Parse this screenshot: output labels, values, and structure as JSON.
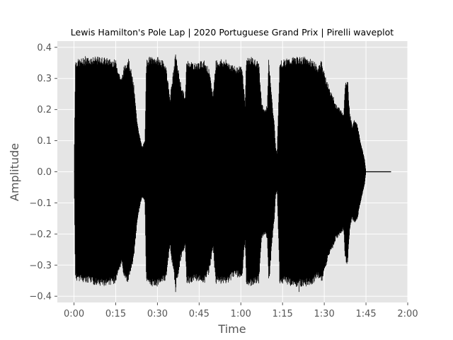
{
  "chart_data": {
    "type": "area",
    "title": "Lewis Hamilton's Pole Lap | 2020 Portuguese Grand Prix | Pirelli waveplot",
    "xlabel": "Time",
    "ylabel": "Amplitude",
    "x_unit": "seconds",
    "xlim": [
      -6,
      120
    ],
    "ylim": [
      -0.42,
      0.42
    ],
    "x_ticks": [
      {
        "value": 0,
        "label": "0:00"
      },
      {
        "value": 15,
        "label": "0:15"
      },
      {
        "value": 30,
        "label": "0:30"
      },
      {
        "value": 45,
        "label": "0:45"
      },
      {
        "value": 60,
        "label": "1:00"
      },
      {
        "value": 75,
        "label": "1:15"
      },
      {
        "value": 90,
        "label": "1:30"
      },
      {
        "value": 105,
        "label": "1:45"
      },
      {
        "value": 120,
        "label": "2:00"
      }
    ],
    "y_ticks": [
      {
        "value": 0.4,
        "label": "0.4"
      },
      {
        "value": 0.3,
        "label": "0.3"
      },
      {
        "value": 0.2,
        "label": "0.2"
      },
      {
        "value": 0.1,
        "label": "0.1"
      },
      {
        "value": 0.0,
        "label": "0.0"
      },
      {
        "value": -0.1,
        "label": "−0.1"
      },
      {
        "value": -0.2,
        "label": "−0.2"
      },
      {
        "value": -0.3,
        "label": "−0.3"
      },
      {
        "value": -0.4,
        "label": "−0.4"
      }
    ],
    "grid": true,
    "background": "#e5e5e5",
    "grid_color": "#ffffff",
    "waveform_color": "#000000",
    "envelope": {
      "x": [
        0,
        0.5,
        5,
        10,
        15,
        17,
        18,
        19.5,
        20.5,
        21.5,
        22.5,
        23.5,
        24.5,
        25.5,
        26,
        27,
        30,
        33,
        34.5,
        36.5,
        38.5,
        40,
        40.5,
        41.5,
        43.5,
        47,
        48.5,
        50,
        51,
        52.5,
        55,
        57.5,
        60.5,
        61.5,
        62,
        63.5,
        65.5,
        66.5,
        67.5,
        68.5,
        69.5,
        70,
        70.5,
        71,
        71.5,
        72,
        72.5,
        73,
        74,
        75,
        79,
        83,
        86,
        87.5,
        89,
        90,
        91.5,
        92,
        93,
        94,
        95,
        96,
        97,
        97.5,
        98,
        98.5,
        99,
        100,
        101,
        102,
        103,
        104,
        104.5,
        105,
        114
      ],
      "upper": [
        0,
        0.36,
        0.37,
        0.37,
        0.36,
        0.3,
        0.34,
        0.37,
        0.33,
        0.28,
        0.18,
        0.12,
        0.08,
        0.1,
        0.36,
        0.37,
        0.37,
        0.35,
        0.24,
        0.38,
        0.28,
        0.24,
        0.36,
        0.36,
        0.35,
        0.36,
        0.33,
        0.25,
        0.36,
        0.36,
        0.36,
        0.34,
        0.34,
        0.22,
        0.37,
        0.37,
        0.36,
        0.35,
        0.22,
        0.2,
        0.22,
        0.36,
        0.32,
        0.26,
        0.2,
        0.16,
        0.08,
        0.06,
        0.36,
        0.36,
        0.37,
        0.37,
        0.36,
        0.34,
        0.36,
        0.32,
        0.28,
        0.26,
        0.25,
        0.22,
        0.21,
        0.2,
        0.19,
        0.28,
        0.3,
        0.29,
        0.2,
        0.15,
        0.17,
        0.15,
        0.1,
        0.06,
        0.04,
        0.001,
        0.001
      ],
      "lower": [
        0,
        -0.35,
        -0.36,
        -0.37,
        -0.36,
        -0.3,
        -0.34,
        -0.36,
        -0.32,
        -0.28,
        -0.18,
        -0.12,
        -0.08,
        -0.1,
        -0.36,
        -0.37,
        -0.37,
        -0.35,
        -0.24,
        -0.38,
        -0.28,
        -0.24,
        -0.36,
        -0.36,
        -0.35,
        -0.36,
        -0.33,
        -0.25,
        -0.36,
        -0.36,
        -0.36,
        -0.34,
        -0.34,
        -0.22,
        -0.37,
        -0.37,
        -0.36,
        -0.35,
        -0.22,
        -0.2,
        -0.22,
        -0.36,
        -0.32,
        -0.26,
        -0.2,
        -0.16,
        -0.08,
        -0.06,
        -0.36,
        -0.36,
        -0.37,
        -0.37,
        -0.36,
        -0.34,
        -0.36,
        -0.32,
        -0.28,
        -0.26,
        -0.25,
        -0.22,
        -0.21,
        -0.2,
        -0.19,
        -0.28,
        -0.3,
        -0.29,
        -0.2,
        -0.15,
        -0.17,
        -0.15,
        -0.1,
        -0.06,
        -0.04,
        -0.001,
        -0.001
      ]
    }
  }
}
